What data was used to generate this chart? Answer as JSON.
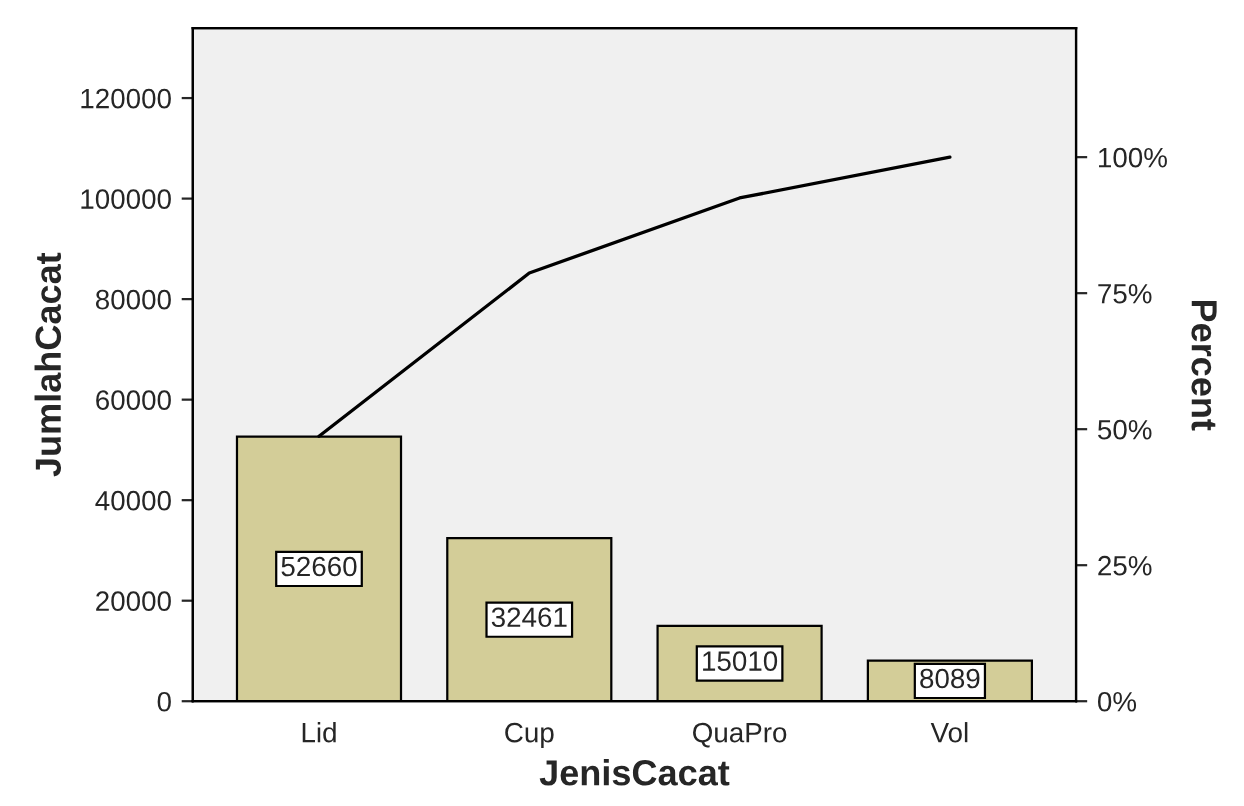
{
  "chart_data": {
    "type": "bar",
    "xlabel": "JenisCacat",
    "ylabel": "JumlahCacat",
    "y2label": "Percent",
    "categories": [
      "Lid",
      "Cup",
      "QuaPro",
      "Vol"
    ],
    "series": [
      {
        "color": "#d3cd98",
        "values": [
          52660,
          32461,
          15010,
          8089
        ],
        "value_labels": [
          "52660",
          "32461",
          "15010",
          "8089"
        ]
      },
      {
        "type": "line",
        "axis": "y2",
        "color": "#000000",
        "values": [
          48.7,
          78.7,
          92.5,
          100
        ]
      }
    ],
    "ylim": [
      0,
      133900
    ],
    "yticks": [
      0,
      20000,
      40000,
      60000,
      80000,
      100000,
      120000
    ],
    "y2lim": [
      0,
      123.7
    ],
    "y2ticks": [
      {
        "value": 0,
        "label": "0%"
      },
      {
        "value": 25,
        "label": "25%"
      },
      {
        "value": 50,
        "label": "50%"
      },
      {
        "value": 75,
        "label": "75%"
      },
      {
        "value": 100,
        "label": "100%"
      }
    ],
    "grid": false,
    "legend": false,
    "marker": "none",
    "line_style": "solid"
  }
}
